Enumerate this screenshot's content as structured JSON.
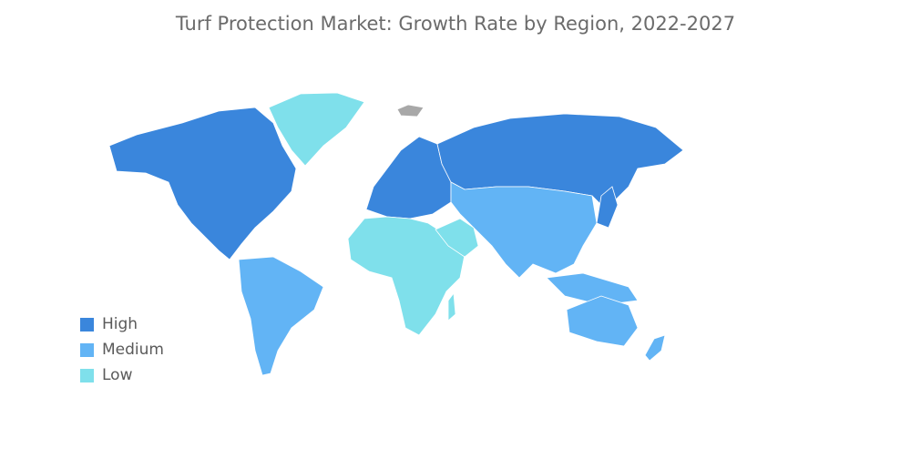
{
  "title": "Turf Protection Market: Growth Rate by Region, 2022-2027",
  "colors": {
    "high": "#3a86dc",
    "medium": "#62b4f5",
    "low": "#7fe0eb",
    "no_data": "#a8a8a8"
  },
  "legend": [
    {
      "label": "High",
      "level": "high"
    },
    {
      "label": "Medium",
      "level": "medium"
    },
    {
      "label": "Low",
      "level": "low"
    }
  ],
  "regions": [
    {
      "name": "North America",
      "level": "high"
    },
    {
      "name": "Europe",
      "level": "high"
    },
    {
      "name": "Russia",
      "level": "high"
    },
    {
      "name": "Japan",
      "level": "high"
    },
    {
      "name": "South America",
      "level": "medium"
    },
    {
      "name": "Asia-Pacific",
      "level": "medium"
    },
    {
      "name": "Australia",
      "level": "medium"
    },
    {
      "name": "Africa",
      "level": "low"
    },
    {
      "name": "Middle East",
      "level": "low"
    },
    {
      "name": "Greenland",
      "level": "low"
    }
  ]
}
